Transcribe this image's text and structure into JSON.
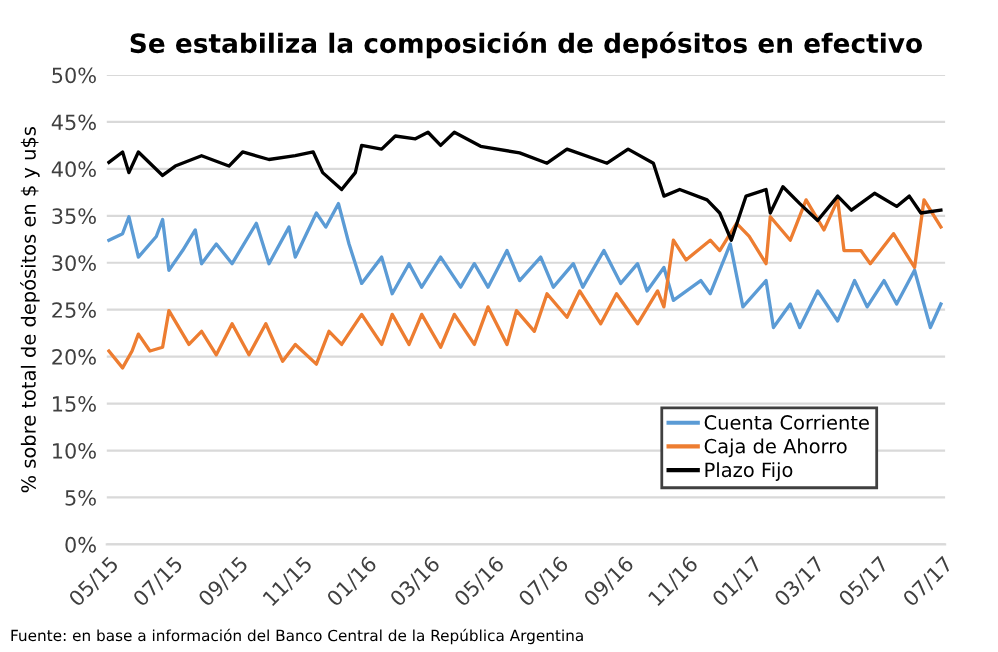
{
  "chart_data": {
    "type": "line",
    "title": "Se estabiliza la composición de depósitos en efectivo",
    "ylabel": "% sobre total de depósitos en $ y u$s",
    "annotations": [
      "Fuente: en base a información del Banco Central de la República Argentina"
    ],
    "xlim": [
      "2015-04-29",
      "2017-07-03"
    ],
    "xticks": [
      {
        "value": "2015-05-01",
        "label": "05/15"
      },
      {
        "value": "2015-07-01",
        "label": "07/15"
      },
      {
        "value": "2015-09-01",
        "label": "09/15"
      },
      {
        "value": "2015-11-01",
        "label": "11/15"
      },
      {
        "value": "2016-01-01",
        "label": "01/16"
      },
      {
        "value": "2016-03-01",
        "label": "03/16"
      },
      {
        "value": "2016-05-01",
        "label": "05/16"
      },
      {
        "value": "2016-07-01",
        "label": "07/16"
      },
      {
        "value": "2016-09-01",
        "label": "09/16"
      },
      {
        "value": "2016-11-01",
        "label": "11/16"
      },
      {
        "value": "2017-01-01",
        "label": "01/17"
      },
      {
        "value": "2017-03-01",
        "label": "03/17"
      },
      {
        "value": "2017-05-01",
        "label": "05/17"
      },
      {
        "value": "2017-07-01",
        "label": "07/17"
      }
    ],
    "ylim": [
      0,
      50
    ],
    "yticks": [
      {
        "value": 0,
        "label": "0%"
      },
      {
        "value": 5,
        "label": "5%"
      },
      {
        "value": 10,
        "label": "10%"
      },
      {
        "value": 15,
        "label": "15%"
      },
      {
        "value": 20,
        "label": "20%"
      },
      {
        "value": 25,
        "label": "25%"
      },
      {
        "value": 30,
        "label": "30%"
      },
      {
        "value": 35,
        "label": "35%"
      },
      {
        "value": 40,
        "label": "40%"
      },
      {
        "value": 45,
        "label": "45%"
      },
      {
        "value": 50,
        "label": "50%"
      }
    ],
    "grid": "y",
    "legend": "bottom right",
    "line_style": "solid",
    "marker": "none",
    "series": [
      {
        "name": "Cuenta Corriente",
        "color": "#5b9bd5",
        "x": [
          "2015-05-01",
          "2015-05-14",
          "2015-05-20",
          "2015-05-29",
          "2015-06-15",
          "2015-06-21",
          "2015-06-27",
          "2015-07-10",
          "2015-07-22",
          "2015-07-28",
          "2015-08-11",
          "2015-08-26",
          "2015-09-18",
          "2015-09-30",
          "2015-10-19",
          "2015-10-25",
          "2015-11-14",
          "2015-11-23",
          "2015-12-05",
          "2015-12-15",
          "2015-12-27",
          "2016-01-15",
          "2016-01-25",
          "2016-02-10",
          "2016-02-22",
          "2016-03-11",
          "2016-03-30",
          "2016-04-12",
          "2016-04-25",
          "2016-05-13",
          "2016-05-25",
          "2016-06-14",
          "2016-06-26",
          "2016-07-15",
          "2016-07-24",
          "2016-08-13",
          "2016-08-29",
          "2016-09-14",
          "2016-09-23",
          "2016-10-09",
          "2016-10-18",
          "2016-11-13",
          "2016-11-22",
          "2016-12-11",
          "2016-12-23",
          "2017-01-14",
          "2017-01-21",
          "2017-02-06",
          "2017-02-15",
          "2017-03-04",
          "2017-03-23",
          "2017-04-08",
          "2017-04-20",
          "2017-05-06",
          "2017-05-18",
          "2017-06-04",
          "2017-06-19",
          "2017-06-29"
        ],
        "values": [
          32.4,
          33.1,
          34.9,
          30.6,
          32.8,
          34.6,
          29.2,
          31.3,
          33.5,
          29.9,
          32.0,
          29.9,
          34.2,
          29.9,
          33.8,
          30.6,
          35.3,
          33.8,
          36.3,
          32.0,
          27.8,
          30.6,
          26.7,
          29.9,
          27.4,
          30.6,
          27.4,
          29.9,
          27.4,
          31.3,
          28.1,
          30.6,
          27.4,
          29.9,
          27.4,
          31.3,
          27.8,
          29.9,
          27.0,
          29.5,
          26.0,
          28.1,
          26.7,
          32.0,
          25.3,
          28.1,
          23.1,
          25.6,
          23.1,
          27.0,
          23.8,
          28.1,
          25.3,
          28.1,
          25.6,
          29.2,
          23.1,
          25.6
        ]
      },
      {
        "name": "Caja de Ahorro",
        "color": "#ed7d31",
        "x": [
          "2015-05-01",
          "2015-05-14",
          "2015-05-23",
          "2015-05-29",
          "2015-06-09",
          "2015-06-21",
          "2015-06-27",
          "2015-07-16",
          "2015-07-28",
          "2015-08-11",
          "2015-08-26",
          "2015-09-11",
          "2015-09-27",
          "2015-10-13",
          "2015-10-25",
          "2015-11-14",
          "2015-11-26",
          "2015-12-08",
          "2015-12-27",
          "2016-01-15",
          "2016-01-25",
          "2016-02-10",
          "2016-02-22",
          "2016-03-11",
          "2016-03-24",
          "2016-04-12",
          "2016-04-25",
          "2016-05-13",
          "2016-05-22",
          "2016-06-08",
          "2016-06-20",
          "2016-07-09",
          "2016-07-21",
          "2016-08-10",
          "2016-08-25",
          "2016-09-14",
          "2016-10-03",
          "2016-10-09",
          "2016-10-18",
          "2016-10-30",
          "2016-11-22",
          "2016-12-01",
          "2016-12-17",
          "2016-12-29",
          "2017-01-14",
          "2017-01-18",
          "2017-02-06",
          "2017-02-21",
          "2017-03-10",
          "2017-03-23",
          "2017-03-29",
          "2017-04-14",
          "2017-04-23",
          "2017-05-15",
          "2017-06-04",
          "2017-06-13",
          "2017-06-29"
        ],
        "values": [
          20.6,
          18.8,
          20.6,
          22.4,
          20.6,
          21.0,
          24.9,
          21.3,
          22.7,
          20.2,
          23.5,
          20.2,
          23.5,
          19.5,
          21.3,
          19.2,
          22.7,
          21.3,
          24.5,
          21.3,
          24.5,
          21.3,
          24.5,
          21.0,
          24.5,
          21.3,
          25.3,
          21.3,
          24.9,
          22.7,
          26.7,
          24.2,
          27.0,
          23.5,
          26.7,
          23.5,
          27.0,
          25.3,
          32.4,
          30.3,
          32.4,
          31.3,
          34.2,
          32.8,
          29.9,
          34.9,
          32.4,
          36.7,
          33.5,
          36.7,
          31.3,
          31.3,
          29.9,
          33.1,
          29.5,
          36.7,
          33.8
        ]
      },
      {
        "name": "Plazo Fijo",
        "color": "#000000",
        "x": [
          "2015-05-01",
          "2015-05-14",
          "2015-05-20",
          "2015-05-29",
          "2015-06-21",
          "2015-07-03",
          "2015-07-28",
          "2015-08-23",
          "2015-09-05",
          "2015-09-30",
          "2015-10-25",
          "2015-11-11",
          "2015-11-20",
          "2015-12-08",
          "2015-12-21",
          "2015-12-27",
          "2016-01-15",
          "2016-01-28",
          "2016-02-16",
          "2016-02-28",
          "2016-03-11",
          "2016-03-24",
          "2016-04-18",
          "2016-05-25",
          "2016-06-20",
          "2016-07-09",
          "2016-08-16",
          "2016-09-05",
          "2016-09-29",
          "2016-10-09",
          "2016-10-24",
          "2016-11-19",
          "2016-12-01",
          "2016-12-12",
          "2016-12-26",
          "2017-01-14",
          "2017-01-18",
          "2017-01-30",
          "2017-02-15",
          "2017-03-04",
          "2017-03-23",
          "2017-04-05",
          "2017-04-27",
          "2017-05-18",
          "2017-05-30",
          "2017-06-10",
          "2017-06-29"
        ],
        "values": [
          40.7,
          41.8,
          39.6,
          41.8,
          39.3,
          40.3,
          41.4,
          40.3,
          41.8,
          41.0,
          41.4,
          41.8,
          39.6,
          37.8,
          39.6,
          42.5,
          42.1,
          43.5,
          43.2,
          43.9,
          42.5,
          43.9,
          42.4,
          41.7,
          40.6,
          42.1,
          40.6,
          42.1,
          40.6,
          37.1,
          37.8,
          36.7,
          35.3,
          32.4,
          37.1,
          37.8,
          35.3,
          38.1,
          36.3,
          34.5,
          37.1,
          35.6,
          37.4,
          36.0,
          37.1,
          35.3,
          35.6
        ]
      }
    ]
  }
}
